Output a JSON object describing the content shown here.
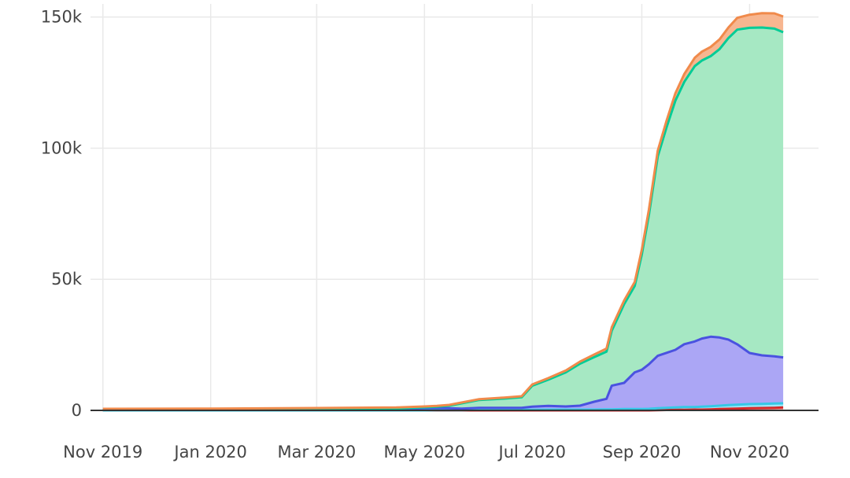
{
  "chart_data": {
    "type": "area",
    "stacked": true,
    "grid": true,
    "legend": "none",
    "title": "",
    "xlabel": "",
    "ylabel": "",
    "ylim": [
      0,
      155000
    ],
    "xlim": [
      "2019-10-25",
      "2020-12-10"
    ],
    "x_ticks": [
      {
        "date": "2019-11-01",
        "label": "Nov 2019"
      },
      {
        "date": "2020-01-01",
        "label": "Jan 2020"
      },
      {
        "date": "2020-03-01",
        "label": "Mar 2020"
      },
      {
        "date": "2020-05-01",
        "label": "May 2020"
      },
      {
        "date": "2020-07-01",
        "label": "Jul 2020"
      },
      {
        "date": "2020-09-01",
        "label": "Sep 2020"
      },
      {
        "date": "2020-11-01",
        "label": "Nov 2020"
      }
    ],
    "y_ticks": [
      {
        "value": 0,
        "label": "0"
      },
      {
        "value": 50000,
        "label": "50k"
      },
      {
        "value": 100000,
        "label": "100k"
      },
      {
        "value": 150000,
        "label": "150k"
      }
    ],
    "x": [
      "2019-11-01",
      "2020-01-01",
      "2020-03-01",
      "2020-04-15",
      "2020-05-01",
      "2020-05-08",
      "2020-05-15",
      "2020-05-22",
      "2020-06-01",
      "2020-06-15",
      "2020-06-25",
      "2020-07-01",
      "2020-07-10",
      "2020-07-20",
      "2020-07-28",
      "2020-08-05",
      "2020-08-12",
      "2020-08-15",
      "2020-08-22",
      "2020-08-28",
      "2020-09-01",
      "2020-09-05",
      "2020-09-10",
      "2020-09-15",
      "2020-09-20",
      "2020-09-25",
      "2020-10-01",
      "2020-10-05",
      "2020-10-10",
      "2020-10-15",
      "2020-10-20",
      "2020-10-25",
      "2020-11-01",
      "2020-11-08",
      "2020-11-15",
      "2020-11-20"
    ],
    "series": [
      {
        "key": "s1",
        "color": "#d62728",
        "line_color": "#d62728",
        "fill_color": "#f4a6a0",
        "values": [
          0,
          0,
          0,
          0,
          0,
          0,
          0,
          0,
          0,
          0,
          0,
          0,
          0,
          0,
          0,
          0,
          0,
          0,
          0,
          0,
          0,
          0,
          100,
          150,
          200,
          250,
          300,
          300,
          400,
          500,
          600,
          700,
          800,
          900,
          1000,
          1100
        ]
      },
      {
        "key": "s2",
        "color": "#17becf",
        "line_color": "#35c8e6",
        "fill_color": "#9fe7f5",
        "values": [
          0,
          0,
          0,
          0,
          0,
          100,
          100,
          100,
          200,
          200,
          200,
          200,
          300,
          300,
          300,
          300,
          400,
          400,
          500,
          500,
          500,
          600,
          700,
          800,
          900,
          1000,
          1000,
          1100,
          1200,
          1300,
          1400,
          1500,
          1600,
          1600,
          1600,
          1600
        ]
      },
      {
        "key": "s3",
        "color": "#636efa",
        "line_color": "#4a52e0",
        "fill_color": "#aba6f5",
        "values": [
          200,
          300,
          400,
          500,
          800,
          800,
          700,
          600,
          800,
          800,
          800,
          1200,
          1400,
          1200,
          1500,
          3000,
          4000,
          9000,
          10000,
          14000,
          15000,
          17000,
          20000,
          21000,
          22000,
          24000,
          25000,
          26000,
          26500,
          26000,
          25000,
          23000,
          19500,
          18500,
          18000,
          17500
        ]
      },
      {
        "key": "s4",
        "color": "#00cc96",
        "line_color": "#00cc96",
        "fill_color": "#a6e8c3",
        "values": [
          0,
          0,
          100,
          200,
          400,
          500,
          1000,
          2000,
          3000,
          3500,
          4000,
          8000,
          10000,
          13000,
          16000,
          17000,
          18000,
          21000,
          30000,
          33000,
          44000,
          57000,
          76000,
          86000,
          95000,
          100000,
          105000,
          106000,
          107000,
          110000,
          115000,
          120000,
          124000,
          125000,
          125000,
          124000
        ]
      },
      {
        "key": "s5",
        "color": "#ef553b",
        "line_color": "#f08a4b",
        "fill_color": "#f7b690",
        "values": [
          400,
          400,
          400,
          400,
          300,
          300,
          300,
          300,
          300,
          400,
          400,
          500,
          600,
          700,
          800,
          1000,
          1200,
          1300,
          1400,
          1500,
          1800,
          2000,
          2200,
          2500,
          2800,
          3000,
          3200,
          3400,
          3500,
          3700,
          4000,
          4500,
          5000,
          5500,
          5800,
          6000
        ]
      }
    ]
  }
}
